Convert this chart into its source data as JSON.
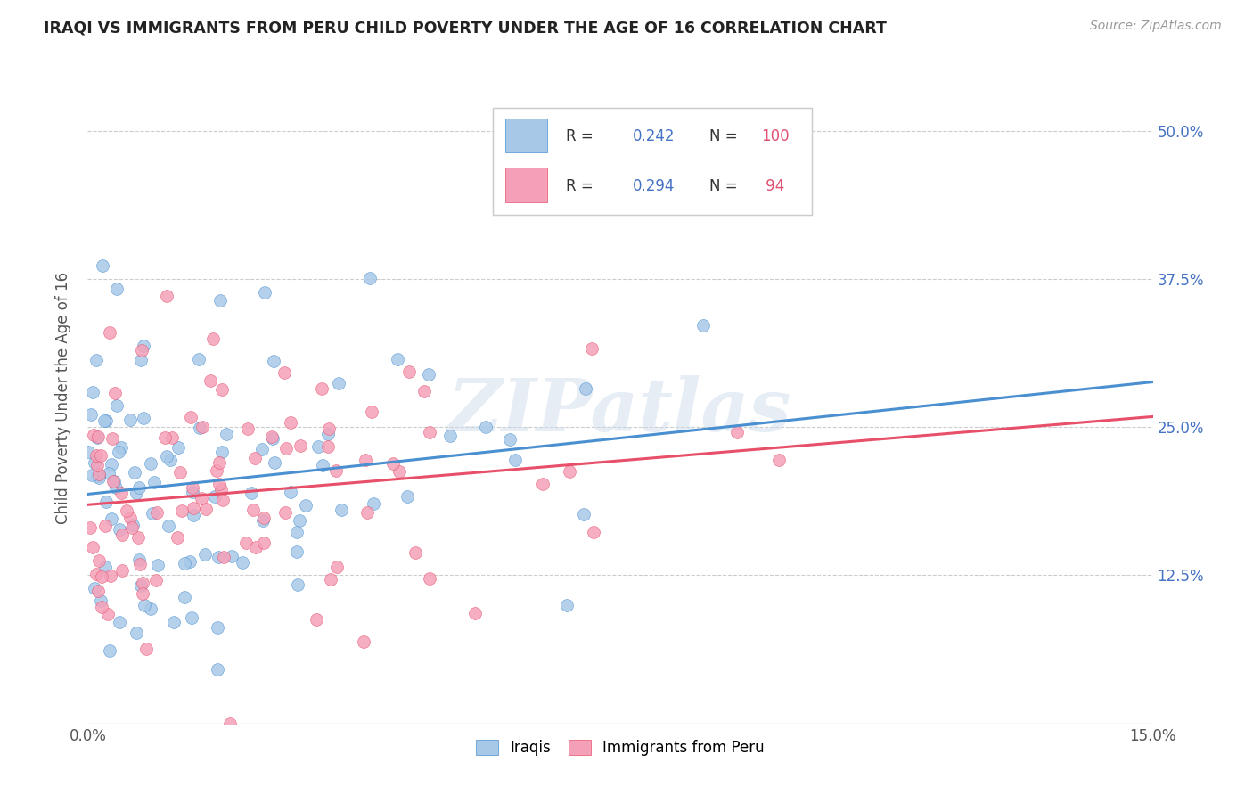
{
  "title": "IRAQI VS IMMIGRANTS FROM PERU CHILD POVERTY UNDER THE AGE OF 16 CORRELATION CHART",
  "source": "Source: ZipAtlas.com",
  "ylabel": "Child Poverty Under the Age of 16",
  "xlim": [
    0.0,
    0.15
  ],
  "ylim": [
    0.0,
    0.55
  ],
  "xtick_pos": [
    0.0,
    0.03,
    0.06,
    0.09,
    0.12,
    0.15
  ],
  "xtick_labels": [
    "0.0%",
    "",
    "",
    "",
    "",
    "15.0%"
  ],
  "ytick_pos": [
    0.0,
    0.125,
    0.25,
    0.375,
    0.5
  ],
  "ytick_labels_right": [
    "",
    "12.5%",
    "25.0%",
    "37.5%",
    "50.0%"
  ],
  "iraqi_R": 0.242,
  "iraqi_N": 100,
  "peru_R": 0.294,
  "peru_N": 94,
  "iraqi_color": "#a8c8e8",
  "peru_color": "#f4a0b8",
  "iraqi_line_color": "#4a90d0",
  "peru_line_color": "#e8506a",
  "legend_label_iraqi": "Iraqis",
  "legend_label_peru": "Immigrants from Peru",
  "watermark": "ZIPatlas",
  "background_color": "#ffffff",
  "legend_text_color": "#4472c4",
  "legend_R_color": "#4472c4",
  "legend_N_color": "#e05070"
}
